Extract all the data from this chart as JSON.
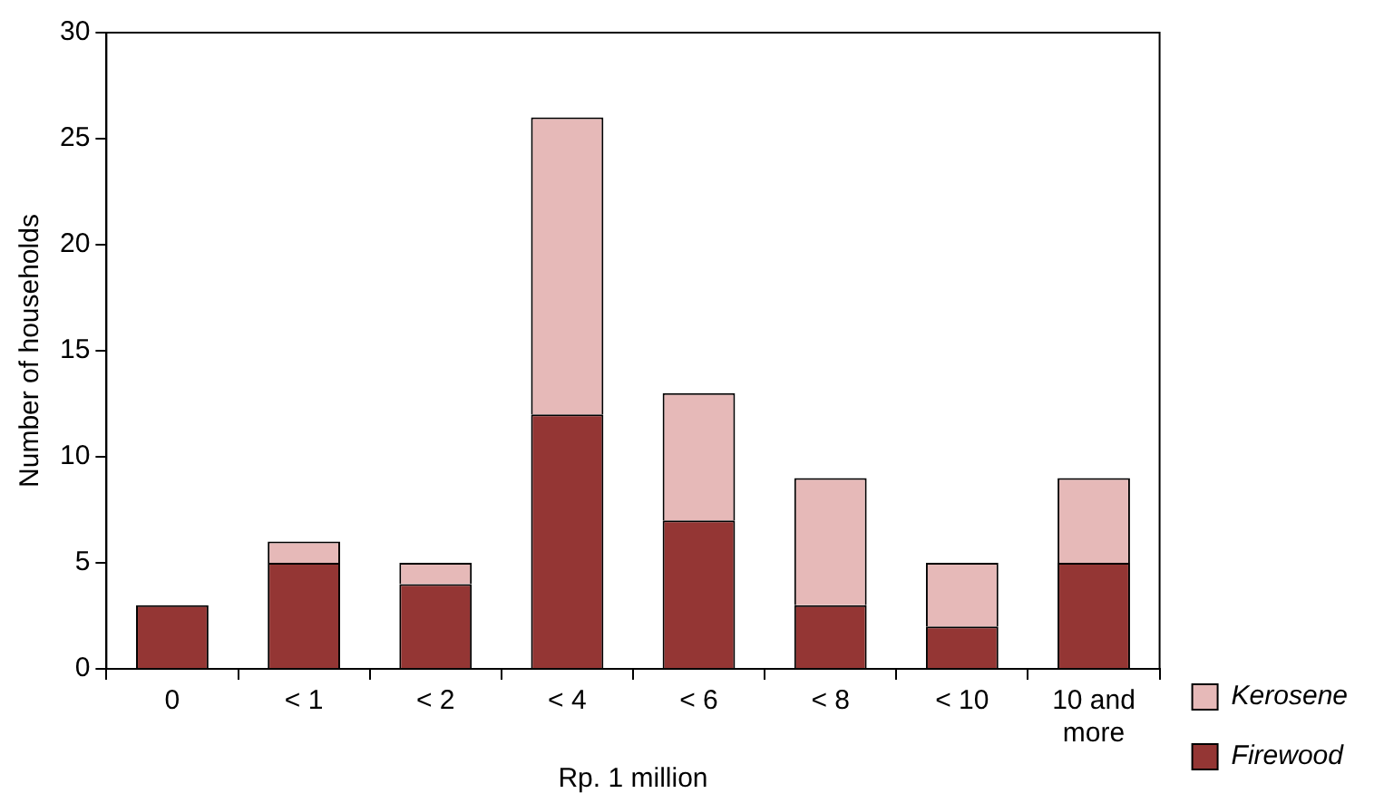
{
  "chart_data": {
    "type": "bar",
    "xlabel": "Rp. 1 million",
    "ylabel": "Number of households",
    "categories": [
      "0",
      "< 1",
      "< 2",
      "< 4",
      "< 6",
      "< 8",
      "< 10",
      "10 and more"
    ],
    "series": [
      {
        "name": "Firewood",
        "color": "#943634",
        "values": [
          3,
          5,
          4,
          12,
          7,
          3,
          2,
          5
        ]
      },
      {
        "name": "Kerosene",
        "color": "#e6b9b8",
        "values": [
          0,
          1,
          1,
          14,
          6,
          6,
          3,
          4
        ]
      }
    ],
    "stacked": true,
    "ylim": [
      0,
      30
    ],
    "yticks": [
      0,
      5,
      10,
      15,
      20,
      25,
      30
    ],
    "grid": false,
    "legend": "bottom right"
  }
}
